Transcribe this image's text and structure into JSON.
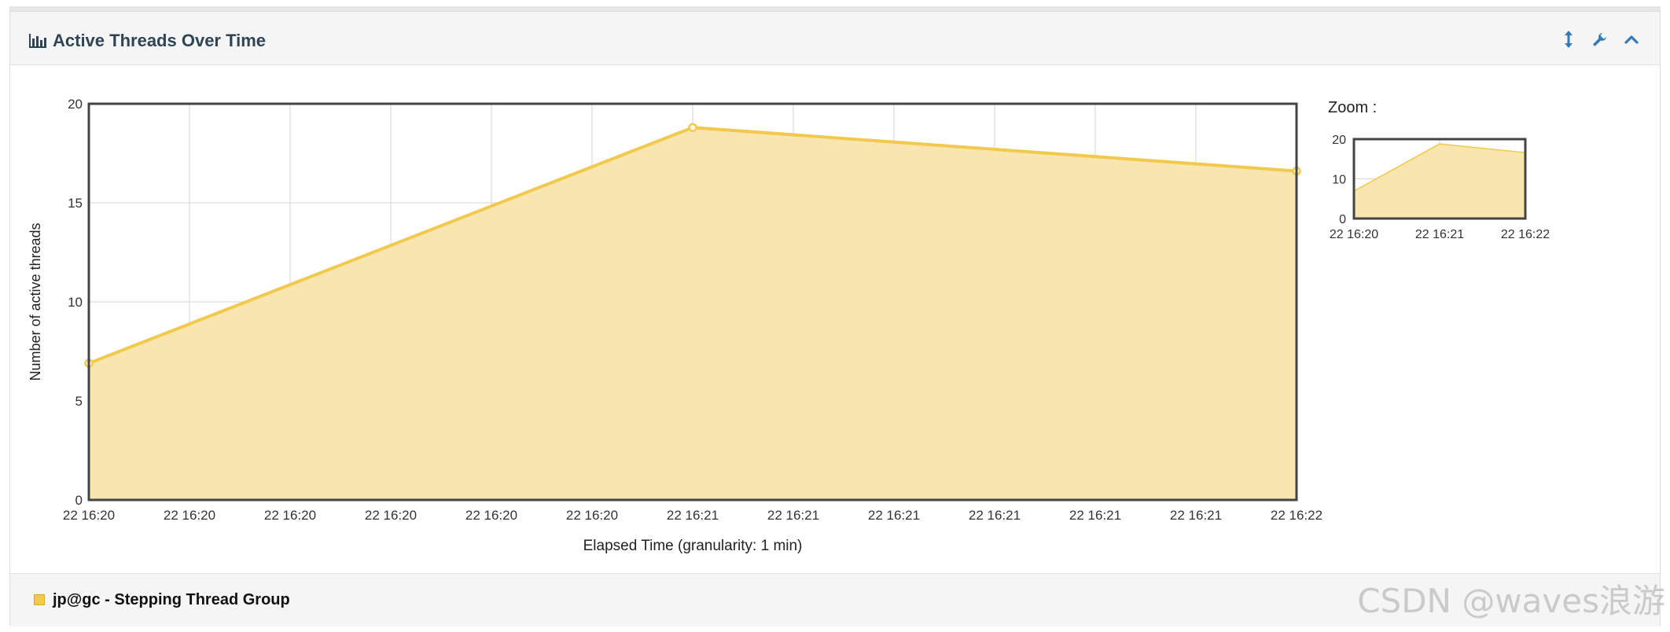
{
  "panel": {
    "title": "Active Threads Over Time",
    "icons": [
      "bar-chart-icon",
      "resize-vertical-icon",
      "wrench-icon",
      "chevron-up-icon"
    ]
  },
  "chart_data": {
    "type": "area",
    "xlabel": "Elapsed Time (granularity: 1 min)",
    "ylabel": "Number of active threads",
    "ylim": [
      0,
      20
    ],
    "y_ticks": [
      0,
      5,
      10,
      15,
      20
    ],
    "x_tick_labels": [
      "22 16:20",
      "22 16:20",
      "22 16:20",
      "22 16:20",
      "22 16:20",
      "22 16:20",
      "22 16:21",
      "22 16:21",
      "22 16:21",
      "22 16:21",
      "22 16:21",
      "22 16:21",
      "22 16:22"
    ],
    "x": [
      "22 16:20",
      "22 16:21",
      "22 16:22"
    ],
    "series": [
      {
        "name": "jp@gc - Stepping Thread Group",
        "values": [
          6.9,
          18.8,
          16.6
        ],
        "color": "#f2c94c",
        "fill": "#f8e5b0"
      }
    ],
    "grid": true,
    "legend_position": "bottom"
  },
  "zoom": {
    "label": "Zoom :",
    "y_ticks": [
      0,
      10,
      20
    ],
    "x_tick_labels": [
      "22 16:20",
      "22 16:21",
      "22 16:22"
    ]
  },
  "legend": {
    "label": "jp@gc - Stepping Thread Group",
    "color": "#f2c94c"
  },
  "watermark": "CSDN @waves浪游"
}
